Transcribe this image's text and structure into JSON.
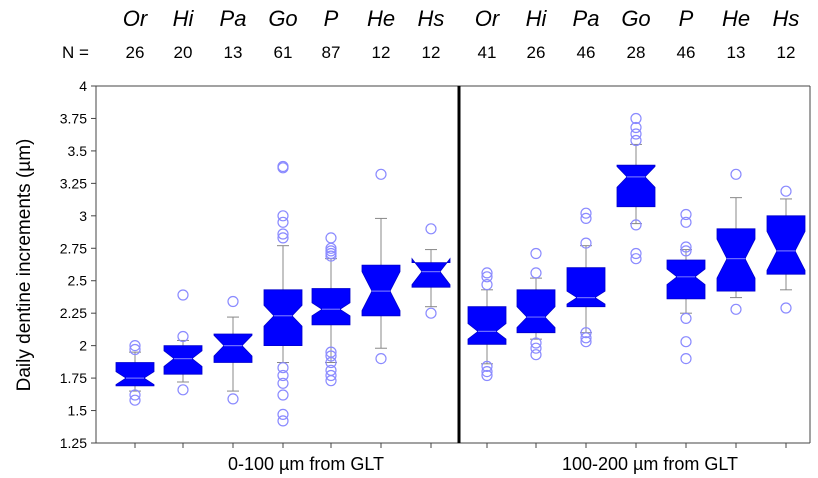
{
  "chart_data": {
    "type": "boxplot",
    "ylabel": "Daily dentine increments (µm)",
    "ylim": [
      1.25,
      4
    ],
    "yticks": [
      "1.25",
      "1.5",
      "1.75",
      "2",
      "2.25",
      "2.5",
      "2.75",
      "3",
      "3.25",
      "3.5",
      "3.75",
      "4"
    ],
    "n_prefix": "N =",
    "colors": {
      "box": "#0000ff",
      "outlier": "#8a8aff",
      "whisker": "#888888"
    },
    "groups": [
      {
        "label": "0-100 µm from GLT",
        "taxa": [
          {
            "name": "Or",
            "n": "26",
            "min": 1.65,
            "q1": 1.69,
            "median": 1.75,
            "q3": 1.87,
            "max": 1.95,
            "notch": 0.05,
            "outliers": [
              1.58,
              1.62,
              1.97,
              2.0
            ]
          },
          {
            "name": "Hi",
            "n": "20",
            "min": 1.72,
            "q1": 1.78,
            "median": 1.9,
            "q3": 2.0,
            "max": 2.04,
            "notch": 0.06,
            "outliers": [
              1.66,
              2.07,
              2.39
            ]
          },
          {
            "name": "Pa",
            "n": "13",
            "min": 1.65,
            "q1": 1.87,
            "median": 2.0,
            "q3": 2.09,
            "max": 2.22,
            "notch": 0.08,
            "outliers": [
              1.59,
              2.34
            ]
          },
          {
            "name": "Go",
            "n": "61",
            "min": 1.87,
            "q1": 2.0,
            "median": 2.23,
            "q3": 2.43,
            "max": 2.77,
            "notch": 0.08,
            "outliers": [
              1.42,
              1.47,
              1.62,
              1.71,
              1.77,
              1.83,
              2.83,
              2.86,
              2.95,
              3.0,
              3.37,
              3.38
            ]
          },
          {
            "name": "P",
            "n": "87",
            "min": 1.87,
            "q1": 2.16,
            "median": 2.28,
            "q3": 2.44,
            "max": 2.67,
            "notch": 0.05,
            "outliers": [
              1.73,
              1.77,
              1.81,
              1.87,
              1.92,
              1.95,
              2.69,
              2.71,
              2.73,
              2.75,
              2.83
            ]
          },
          {
            "name": "He",
            "n": "12",
            "min": 1.98,
            "q1": 2.23,
            "median": 2.42,
            "q3": 2.62,
            "max": 2.98,
            "notch": 0.15,
            "outliers": [
              1.9,
              3.32
            ]
          },
          {
            "name": "Hs",
            "n": "12",
            "min": 2.3,
            "q1": 2.45,
            "median": 2.57,
            "q3": 2.64,
            "max": 2.74,
            "notch": 0.1,
            "outliers": [
              2.25,
              2.9
            ]
          }
        ]
      },
      {
        "label": "100-200 µm from GLT",
        "taxa": [
          {
            "name": "Or",
            "n": "41",
            "min": 1.86,
            "q1": 2.01,
            "median": 2.11,
            "q3": 2.3,
            "max": 2.43,
            "notch": 0.06,
            "outliers": [
              1.77,
              1.8,
              1.84,
              2.47,
              2.53,
              2.56
            ]
          },
          {
            "name": "Hi",
            "n": "26",
            "min": 2.05,
            "q1": 2.1,
            "median": 2.22,
            "q3": 2.43,
            "max": 2.52,
            "notch": 0.08,
            "outliers": [
              1.93,
              1.98,
              2.02,
              2.56,
              2.71
            ]
          },
          {
            "name": "Pa",
            "n": "46",
            "min": 2.1,
            "q1": 2.3,
            "median": 2.37,
            "q3": 2.6,
            "max": 2.77,
            "notch": 0.05,
            "outliers": [
              2.03,
              2.06,
              2.1,
              2.79,
              2.98,
              3.02
            ]
          },
          {
            "name": "Go",
            "n": "28",
            "min": 2.94,
            "q1": 3.07,
            "median": 3.3,
            "q3": 3.39,
            "max": 3.55,
            "notch": 0.08,
            "outliers": [
              2.67,
              2.71,
              2.93,
              3.58,
              3.63,
              3.68,
              3.75
            ]
          },
          {
            "name": "P",
            "n": "46",
            "min": 2.25,
            "q1": 2.36,
            "median": 2.53,
            "q3": 2.66,
            "max": 2.74,
            "notch": 0.06,
            "outliers": [
              1.9,
              2.03,
              2.21,
              2.73,
              2.76,
              2.95,
              3.01
            ]
          },
          {
            "name": "He",
            "n": "13",
            "min": 2.37,
            "q1": 2.42,
            "median": 2.67,
            "q3": 2.9,
            "max": 3.14,
            "notch": 0.15,
            "outliers": [
              2.28,
              3.32
            ]
          },
          {
            "name": "Hs",
            "n": "12",
            "min": 2.43,
            "q1": 2.55,
            "median": 2.73,
            "q3": 3.0,
            "max": 3.13,
            "notch": 0.15,
            "outliers": [
              2.29,
              3.19
            ]
          }
        ]
      }
    ]
  }
}
